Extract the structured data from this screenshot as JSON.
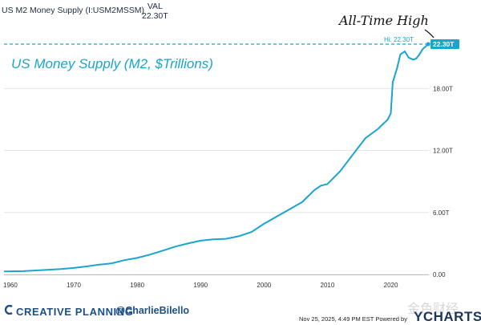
{
  "header": {
    "series_name": "US M2 Money Supply (I:USM2MSSM)",
    "val_label": "VAL",
    "val_value": "22.30T"
  },
  "annotation": "All-Time High",
  "subtitle": "US Money Supply (M2, $Trillions)",
  "brand": {
    "name": "CREATIVE PLANNING",
    "handle": "@CharlieBilello"
  },
  "footer": {
    "text": "Nov 25, 2025, 4:49 PM EST Powered by",
    "logo_text": "YCHARTS"
  },
  "watermark": "金色财经",
  "colors": {
    "line": "#1aa5cc",
    "grid": "#e5e5e5",
    "brand": "#1d4f86"
  },
  "chart_data": {
    "type": "line",
    "x_ticks": [
      1960,
      1970,
      1980,
      1990,
      2000,
      2010,
      2020
    ],
    "y_ticks": [
      0,
      6,
      12,
      18
    ],
    "y_tick_labels": [
      "0.00",
      "6.00T",
      "12.00T",
      "18.00T"
    ],
    "xlim": [
      1959,
      2026
    ],
    "ylim": [
      0,
      22.3
    ],
    "hi_label": "Hi: 22.30T",
    "last_label": "22.30T",
    "hi_value": 22.3,
    "series": [
      {
        "x": [
          1959,
          1962,
          1965,
          1968,
          1970,
          1972,
          1974,
          1976,
          1978,
          1980,
          1982,
          1984,
          1986,
          1988,
          1990,
          1992,
          1994,
          1996,
          1998,
          2000,
          2002,
          2004,
          2006,
          2008,
          2009,
          2010,
          2012,
          2014,
          2016,
          2018,
          2019.5,
          2020,
          2020.3,
          2021,
          2021.5,
          2022.2,
          2022.8,
          2023.5,
          2024,
          2024.5,
          2025,
          2025.9
        ],
        "y": [
          0.29,
          0.32,
          0.42,
          0.53,
          0.63,
          0.78,
          0.95,
          1.08,
          1.38,
          1.6,
          1.92,
          2.3,
          2.7,
          3.0,
          3.27,
          3.4,
          3.45,
          3.7,
          4.1,
          4.9,
          5.6,
          6.3,
          7.0,
          8.2,
          8.6,
          8.75,
          10.0,
          11.6,
          13.2,
          14.1,
          15.0,
          15.6,
          18.6,
          20.0,
          21.3,
          21.6,
          21.0,
          20.8,
          20.9,
          21.3,
          21.8,
          22.3
        ]
      }
    ]
  }
}
